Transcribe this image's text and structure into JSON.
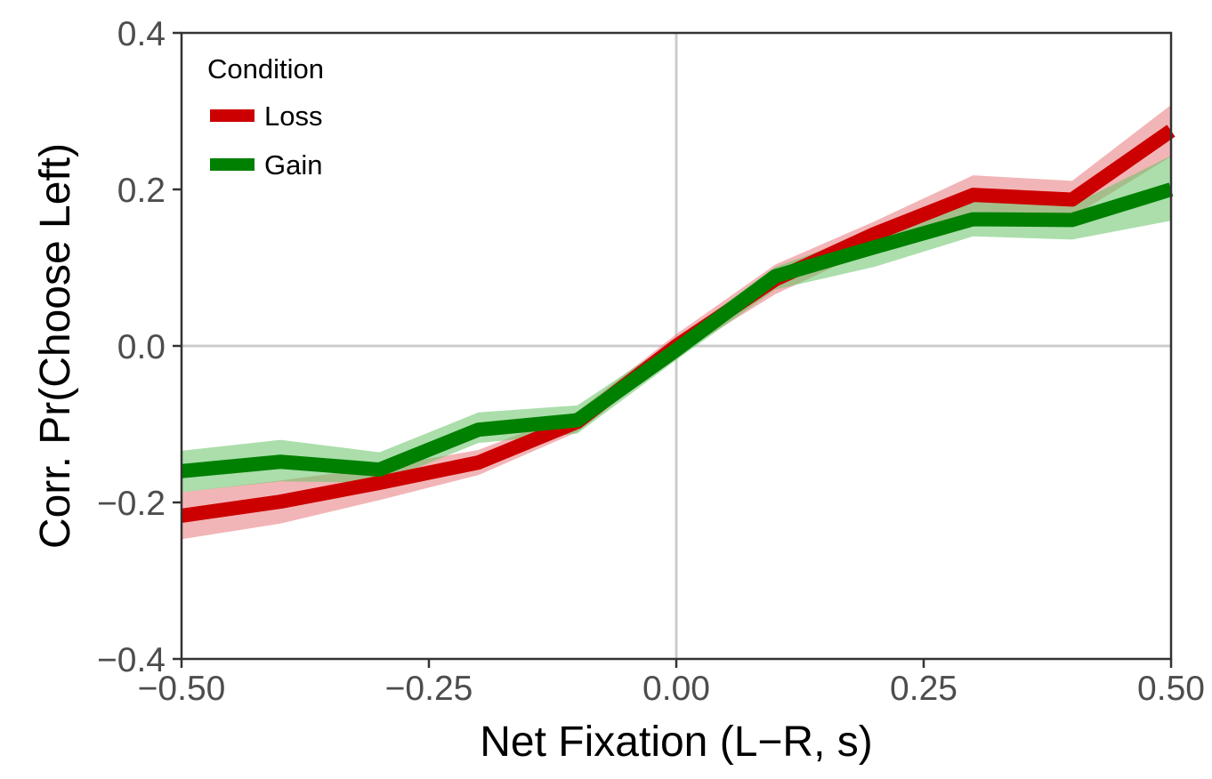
{
  "chart_data": {
    "type": "line",
    "xlabel": "Net Fixation (L−R, s)",
    "ylabel": "Corr. Pr(Choose Left)",
    "xlim": [
      -0.5,
      0.5
    ],
    "ylim": [
      -0.4,
      0.4
    ],
    "x_ticks": [
      -0.5,
      -0.25,
      0.0,
      0.25,
      0.5
    ],
    "x_tick_labels": [
      "−0.50",
      "−0.25",
      "0.00",
      "0.25",
      "0.50"
    ],
    "y_ticks": [
      -0.4,
      -0.2,
      0.0,
      0.2,
      0.4
    ],
    "y_tick_labels": [
      "−0.4",
      "−0.2",
      "0.0",
      "0.2",
      "0.4"
    ],
    "reference_lines": {
      "x": 0,
      "y": 0
    },
    "legend": {
      "title": "Condition",
      "position": "top-left"
    },
    "x": [
      -0.5,
      -0.4,
      -0.3,
      -0.2,
      -0.1,
      0.0,
      0.1,
      0.2,
      0.3,
      0.4,
      0.5
    ],
    "series": [
      {
        "name": "Loss",
        "color": "#cc0000",
        "ribbon_color": "#e8787c",
        "values": [
          -0.217,
          -0.199,
          -0.175,
          -0.149,
          -0.097,
          0.0,
          0.085,
          0.143,
          0.193,
          0.187,
          0.275
        ],
        "lower": [
          -0.247,
          -0.227,
          -0.197,
          -0.165,
          -0.11,
          -0.012,
          0.066,
          0.125,
          0.172,
          0.165,
          0.242
        ],
        "upper": [
          -0.187,
          -0.172,
          -0.155,
          -0.133,
          -0.084,
          0.015,
          0.104,
          0.159,
          0.218,
          0.211,
          0.308
        ]
      },
      {
        "name": "Gain",
        "color": "#008000",
        "ribbon_color": "#66c266",
        "values": [
          -0.16,
          -0.148,
          -0.158,
          -0.107,
          -0.095,
          -0.005,
          0.089,
          0.126,
          0.162,
          0.161,
          0.2
        ],
        "lower": [
          -0.187,
          -0.173,
          -0.175,
          -0.124,
          -0.112,
          -0.018,
          0.072,
          0.101,
          0.14,
          0.136,
          0.16
        ],
        "upper": [
          -0.134,
          -0.12,
          -0.136,
          -0.085,
          -0.076,
          0.008,
          0.101,
          0.146,
          0.185,
          0.18,
          0.243
        ]
      }
    ]
  }
}
